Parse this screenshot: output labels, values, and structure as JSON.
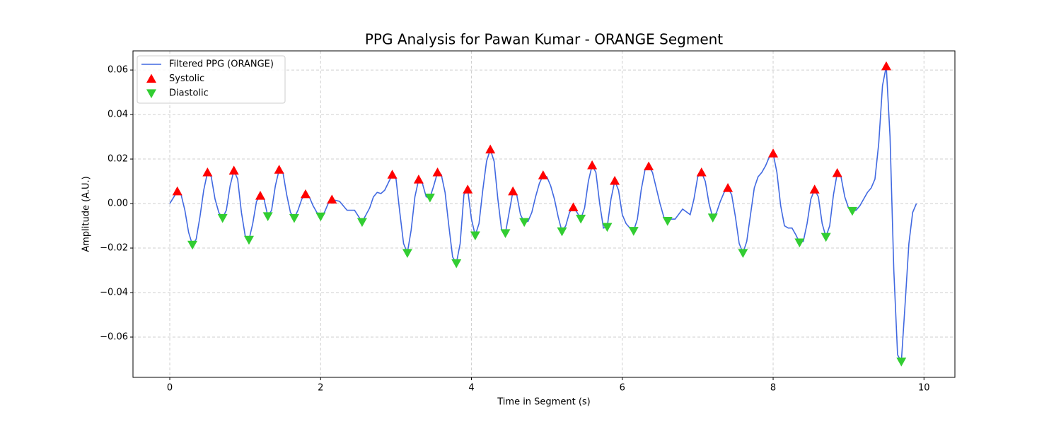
{
  "chart_data": {
    "type": "line",
    "title": "PPG Analysis for Pawan Kumar - ORANGE Segment",
    "xlabel": "Time in Segment (s)",
    "ylabel": "Amplitude (A.U.)",
    "xlim": [
      -0.488,
      10.41
    ],
    "ylim": [
      -0.0781,
      0.0686
    ],
    "xticks": [
      0,
      2,
      4,
      6,
      8,
      10
    ],
    "yticks": [
      {
        "value": -0.06,
        "label": "−0.06"
      },
      {
        "value": -0.04,
        "label": "−0.04"
      },
      {
        "value": -0.02,
        "label": "−0.02"
      },
      {
        "value": 0,
        "label": "0.00"
      },
      0.02,
      0.04,
      0.06
    ],
    "grid": true,
    "legend": "upper left",
    "series": [
      {
        "name": "Filtered PPG (ORANGE)",
        "color": "#4169e1",
        "marker": "none",
        "x": [
          0,
          0.1,
          0.15,
          0.2,
          0.25,
          0.3,
          0.35,
          0.4,
          0.45,
          0.5,
          0.55,
          0.6,
          0.65,
          0.7,
          0.75,
          0.8,
          0.85,
          0.9,
          0.95,
          1.0,
          1.05,
          1.1,
          1.15,
          1.2,
          1.25,
          1.3,
          1.35,
          1.4,
          1.45,
          1.5,
          1.55,
          1.6,
          1.65,
          1.7,
          1.75,
          1.8,
          1.85,
          1.9,
          1.95,
          2.0,
          2.05,
          2.1,
          2.15,
          2.25,
          2.35,
          2.45,
          2.55,
          2.65,
          2.7,
          2.75,
          2.8,
          2.85,
          2.95,
          3.0,
          3.05,
          3.1,
          3.15,
          3.2,
          3.25,
          3.3,
          3.35,
          3.4,
          3.45,
          3.5,
          3.55,
          3.6,
          3.65,
          3.7,
          3.75,
          3.8,
          3.85,
          3.9,
          3.95,
          4.0,
          4.05,
          4.1,
          4.15,
          4.2,
          4.25,
          4.3,
          4.35,
          4.4,
          4.45,
          4.5,
          4.55,
          4.6,
          4.65,
          4.7,
          4.75,
          4.8,
          4.85,
          4.9,
          4.95,
          5.0,
          5.05,
          5.1,
          5.15,
          5.2,
          5.25,
          5.3,
          5.35,
          5.4,
          5.45,
          5.5,
          5.55,
          5.6,
          5.65,
          5.7,
          5.75,
          5.8,
          5.85,
          5.9,
          5.95,
          6.0,
          6.05,
          6.1,
          6.15,
          6.2,
          6.25,
          6.3,
          6.35,
          6.4,
          6.45,
          6.5,
          6.55,
          6.6,
          6.65,
          6.7,
          6.8,
          6.9,
          6.95,
          7.0,
          7.05,
          7.1,
          7.15,
          7.2,
          7.25,
          7.3,
          7.35,
          7.4,
          7.45,
          7.5,
          7.55,
          7.6,
          7.65,
          7.7,
          7.75,
          7.8,
          7.85,
          7.9,
          7.95,
          8.0,
          8.05,
          8.1,
          8.15,
          8.2,
          8.25,
          8.3,
          8.35,
          8.4,
          8.45,
          8.5,
          8.55,
          8.6,
          8.65,
          8.7,
          8.75,
          8.8,
          8.85,
          8.9,
          8.95,
          9.0,
          9.05,
          9.1,
          9.15,
          9.2,
          9.25,
          9.3,
          9.35,
          9.4,
          9.45,
          9.5,
          9.55,
          9.6,
          9.65,
          9.7,
          9.75,
          9.8,
          9.85,
          9.9
        ],
        "values": [
          0,
          0.0055,
          0.004,
          -0.003,
          -0.013,
          -0.0185,
          -0.016,
          -0.006,
          0.006,
          0.014,
          0.012,
          0.002,
          -0.004,
          -0.0065,
          -0.003,
          0.008,
          0.0148,
          0.011,
          -0.004,
          -0.0145,
          -0.0163,
          -0.009,
          0.001,
          0.0035,
          0.002,
          -0.0057,
          -0.003,
          0.008,
          0.0152,
          0.014,
          0.004,
          -0.004,
          -0.0065,
          -0.003,
          0.002,
          0.0042,
          0.003,
          -0.001,
          -0.004,
          -0.0058,
          -0.004,
          0,
          0.0018,
          0.001,
          -0.003,
          -0.003,
          -0.0083,
          -0.002,
          0.003,
          0.005,
          0.0045,
          0.006,
          0.013,
          0.011,
          -0.004,
          -0.018,
          -0.0222,
          -0.012,
          0.003,
          0.0108,
          0.009,
          0.003,
          0.0027,
          0.008,
          0.014,
          0.013,
          0.005,
          -0.01,
          -0.024,
          -0.0268,
          -0.018,
          0.004,
          0.0063,
          -0.007,
          -0.0143,
          -0.009,
          0.006,
          0.019,
          0.0243,
          0.019,
          0.002,
          -0.012,
          -0.0133,
          -0.004,
          0.0055,
          0.004,
          -0.005,
          -0.0083,
          -0.008,
          -0.004,
          0.003,
          0.009,
          0.0127,
          0.012,
          0.008,
          0.002,
          -0.006,
          -0.0125,
          -0.01,
          -0.004,
          -0.0017,
          -0.004,
          -0.0068,
          -0.002,
          0.01,
          0.0172,
          0.014,
          0,
          -0.011,
          -0.0105,
          0.002,
          0.0102,
          0.006,
          -0.005,
          -0.009,
          -0.011,
          -0.0123,
          -0.007,
          0.006,
          0.015,
          0.0167,
          0.014,
          0.007,
          0,
          -0.006,
          -0.0078,
          -0.007,
          -0.007,
          -0.0025,
          -0.005,
          0.002,
          0.012,
          0.014,
          0.01,
          0,
          -0.0063,
          -0.004,
          0.001,
          0.005,
          0.007,
          0.004,
          -0.006,
          -0.018,
          -0.0222,
          -0.017,
          -0.005,
          0.007,
          0.012,
          0.014,
          0.017,
          0.021,
          0.0225,
          0.014,
          -0.001,
          -0.01,
          -0.011,
          -0.011,
          -0.014,
          -0.0175,
          -0.017,
          -0.009,
          0.002,
          0.0063,
          0.003,
          -0.009,
          -0.015,
          -0.01,
          0.004,
          0.0137,
          0.012,
          0.003,
          -0.002,
          -0.0033,
          -0.003,
          -0.001,
          0.002,
          0.005,
          0.007,
          0.011,
          0.027,
          0.053,
          0.0617,
          0.03,
          -0.03,
          -0.068,
          -0.071,
          -0.045,
          -0.018,
          -0.004,
          0
        ]
      },
      {
        "name": "Systolic",
        "color": "#ff0000",
        "marker": "triangle-up",
        "x": [
          0.1,
          0.5,
          0.85,
          1.2,
          1.45,
          1.8,
          2.15,
          2.95,
          3.3,
          3.55,
          3.95,
          4.25,
          4.55,
          4.95,
          5.35,
          5.6,
          5.9,
          6.35,
          7.05,
          7.4,
          8.0,
          8.55,
          8.85,
          9.5
        ],
        "values": [
          0.0055,
          0.014,
          0.0148,
          0.0035,
          0.0152,
          0.0042,
          0.0018,
          0.013,
          0.0108,
          0.014,
          0.0063,
          0.0243,
          0.0055,
          0.0127,
          -0.0017,
          0.0172,
          0.0102,
          0.0167,
          0.014,
          0.007,
          0.0225,
          0.0063,
          0.0137,
          0.0617
        ]
      },
      {
        "name": "Diastolic",
        "color": "#32cd32",
        "marker": "triangle-down",
        "x": [
          0.3,
          0.7,
          1.05,
          1.3,
          1.65,
          2.0,
          2.55,
          3.15,
          3.45,
          3.8,
          4.05,
          4.45,
          4.7,
          5.2,
          5.45,
          5.8,
          6.15,
          6.6,
          7.2,
          7.6,
          8.35,
          8.7,
          9.05,
          9.7
        ],
        "values": [
          -0.0185,
          -0.0065,
          -0.0163,
          -0.0057,
          -0.0065,
          -0.0058,
          -0.0083,
          -0.0222,
          0.0027,
          -0.0268,
          -0.0143,
          -0.0133,
          -0.0083,
          -0.0125,
          -0.0068,
          -0.0105,
          -0.0123,
          -0.0078,
          -0.0063,
          -0.0222,
          -0.0175,
          -0.015,
          -0.0033,
          -0.071
        ]
      }
    ]
  }
}
